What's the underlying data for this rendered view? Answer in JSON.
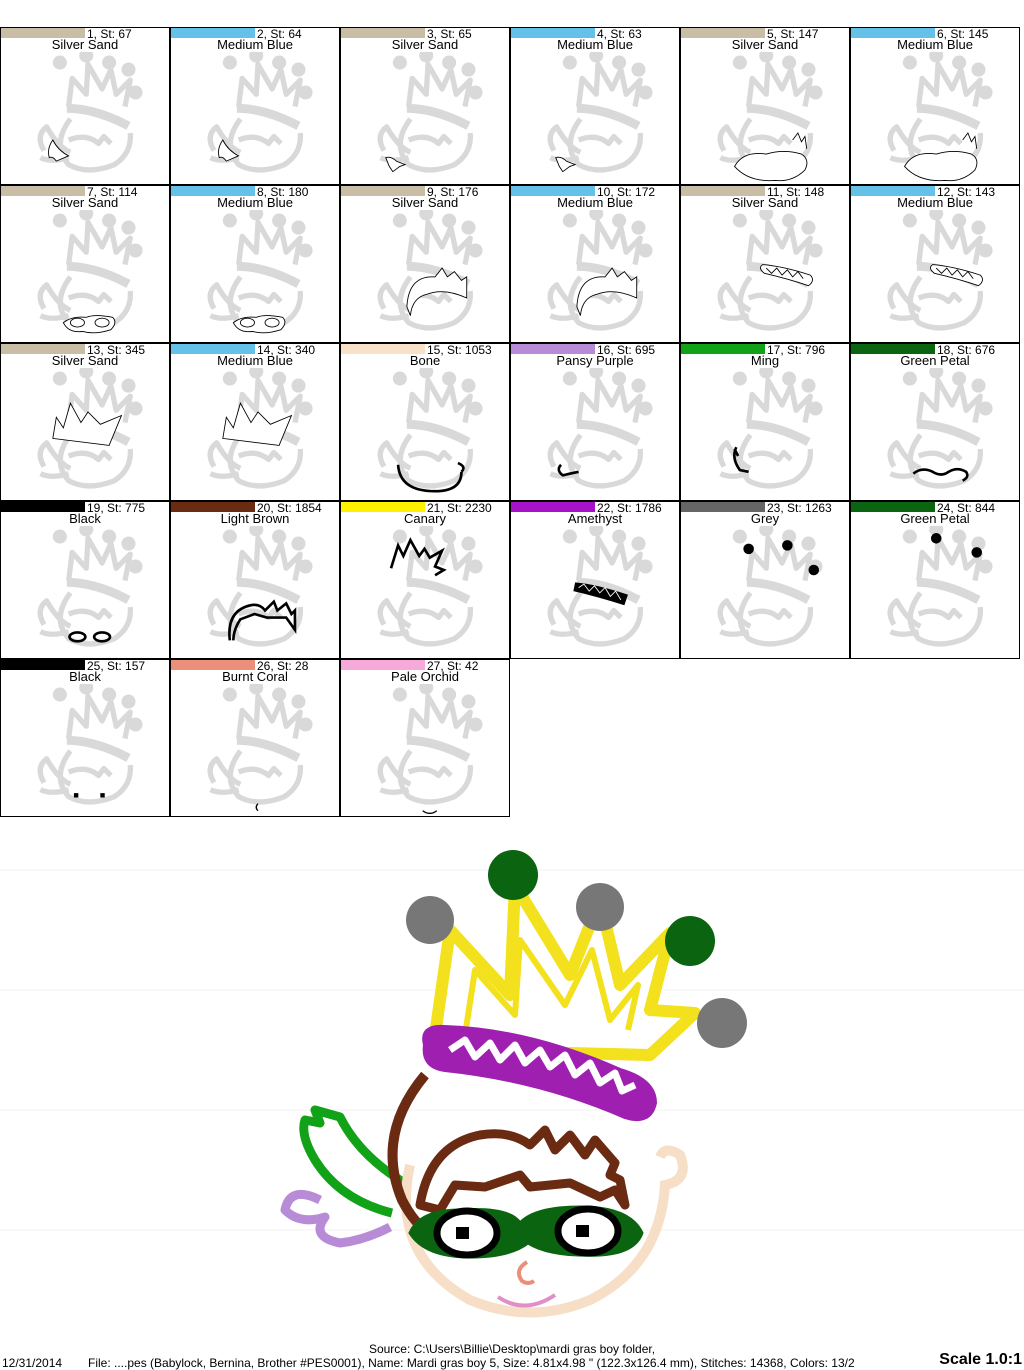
{
  "steps": [
    {
      "header": "1, St: 67",
      "name": "Silver Sand",
      "color": "#C9BDA5",
      "shape": "wing-top"
    },
    {
      "header": "2, St: 64",
      "name": "Medium Blue",
      "color": "#66C1E8",
      "shape": "wing-top"
    },
    {
      "header": "3, St: 65",
      "name": "Silver Sand",
      "color": "#C9BDA5",
      "shape": "wing-low"
    },
    {
      "header": "4, St: 63",
      "name": "Medium Blue",
      "color": "#66C1E8",
      "shape": "wing-low"
    },
    {
      "header": "5, St: 147",
      "name": "Silver Sand",
      "color": "#C9BDA5",
      "shape": "mask-outline"
    },
    {
      "header": "6, St: 145",
      "name": "Medium Blue",
      "color": "#66C1E8",
      "shape": "mask-outline"
    },
    {
      "header": "7, St: 114",
      "name": "Silver Sand",
      "color": "#C9BDA5",
      "shape": "glasses"
    },
    {
      "header": "8, St: 180",
      "name": "Medium Blue",
      "color": "#66C1E8",
      "shape": "glasses"
    },
    {
      "header": "9, St: 176",
      "name": "Silver Sand",
      "color": "#C9BDA5",
      "shape": "hair"
    },
    {
      "header": "10, St: 172",
      "name": "Medium Blue",
      "color": "#66C1E8",
      "shape": "hair"
    },
    {
      "header": "11, St: 148",
      "name": "Silver Sand",
      "color": "#C9BDA5",
      "shape": "band"
    },
    {
      "header": "12, St: 143",
      "name": "Medium Blue",
      "color": "#66C1E8",
      "shape": "band"
    },
    {
      "header": "13, St: 345",
      "name": "Silver Sand",
      "color": "#C9BDA5",
      "shape": "crown"
    },
    {
      "header": "14, St: 340",
      "name": "Medium Blue",
      "color": "#66C1E8",
      "shape": "crown"
    },
    {
      "header": "15, St: 1053",
      "name": "Bone",
      "color": "#F8E1C8",
      "shape": "face"
    },
    {
      "header": "16, St: 695",
      "name": "Pansy Purple",
      "color": "#B78BD6",
      "shape": "wing-low-solid"
    },
    {
      "header": "17, St: 796",
      "name": "Ming",
      "color": "#12A218",
      "shape": "wing-top-solid"
    },
    {
      "header": "18, St: 676",
      "name": "Green Petal",
      "color": "#0A6410",
      "shape": "mask-solid"
    },
    {
      "header": "19, St: 775",
      "name": "Black",
      "color": "#000000",
      "shape": "glasses-solid"
    },
    {
      "header": "20, St: 1854",
      "name": "Light Brown",
      "color": "#6B2A12",
      "shape": "hair-solid"
    },
    {
      "header": "21, St: 2230",
      "name": "Canary",
      "color": "#FFF000",
      "shape": "crown-solid"
    },
    {
      "header": "22, St: 1786",
      "name": "Amethyst",
      "color": "#A612C8",
      "shape": "band-solid"
    },
    {
      "header": "23, St: 1263",
      "name": "Grey",
      "color": "#666666",
      "shape": "balls-grey"
    },
    {
      "header": "24, St: 844",
      "name": "Green Petal",
      "color": "#0A6410",
      "shape": "balls-green"
    },
    {
      "header": "25, St: 157",
      "name": "Black",
      "color": "#000000",
      "shape": "eyes"
    },
    {
      "header": "26, St: 28",
      "name": "Burnt Coral",
      "color": "#EC8F7A",
      "shape": "nose"
    },
    {
      "header": "27, St: 42",
      "name": "Pale Orchid",
      "color": "#F7A9DA",
      "shape": "mouth"
    }
  ],
  "footer": {
    "source": "Source: C:\\Users\\Billie\\Desktop\\mardi gras boy folder,",
    "date": "12/31/2014",
    "file": "File: ....pes (Babylock, Bernina, Brother #PES0001), Name: Mardi gras boy 5, Size: 4.81x4.98 \" (122.3x126.4 mm), Stitches: 14368, Colors: 13/2",
    "scale": "Scale 1.0:1"
  },
  "colors": {
    "ghost": "#D9D9D9",
    "canary": "#F2E11C",
    "amethyst": "#9E1FB0",
    "brown": "#6B2A12",
    "green": "#0A6410",
    "ming": "#12A218",
    "grey": "#777777",
    "purple": "#B78BD6",
    "bone": "#F6DFC6",
    "coral": "#EC8F7A",
    "orchid": "#E08FC8"
  }
}
